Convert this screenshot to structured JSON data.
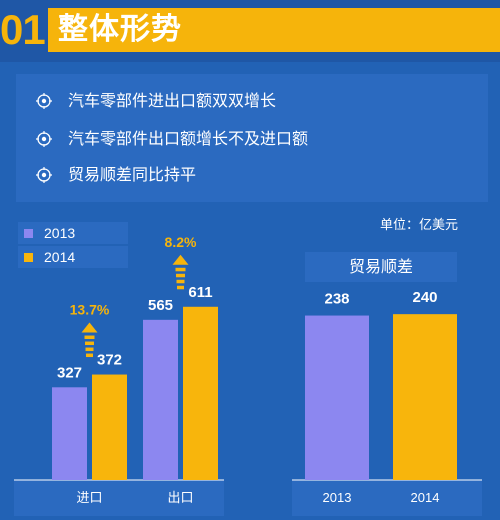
{
  "header": {
    "number": "01",
    "title": "整体形势"
  },
  "bullets": [
    "汽车零部件进出口额双双增长",
    "汽车零部件出口额增长不及进口额",
    "贸易顺差同比持平"
  ],
  "unit_label": "单位：亿美元",
  "colors": {
    "series_2013": "#8c87f0",
    "series_2014": "#f8b50c",
    "background": "#2262b5",
    "accent": "#f6b40b"
  },
  "chart_data": [
    {
      "type": "bar",
      "categories": [
        "进口",
        "出口"
      ],
      "series": [
        {
          "name": "2013",
          "values": [
            327,
            565
          ]
        },
        {
          "name": "2014",
          "values": [
            372,
            611
          ]
        }
      ],
      "growth_labels": [
        "13.7%",
        "8.2%"
      ],
      "legend_position": "top-left",
      "ylim": [
        0,
        700
      ]
    },
    {
      "type": "bar",
      "title": "贸易顺差",
      "categories": [
        "2013",
        "2014"
      ],
      "values": [
        238,
        240
      ],
      "ylim": [
        0,
        400
      ]
    }
  ]
}
